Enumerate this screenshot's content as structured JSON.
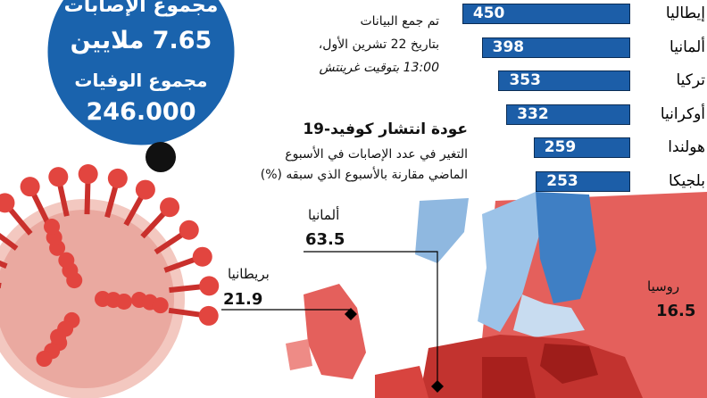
{
  "circle": {
    "cases_label": "مجموع الإصابات",
    "cases": "7.65 ملايين",
    "deaths_label": "مجموع الوفيات",
    "deaths": "246.000"
  },
  "note": [
    "تم جمع البيانات",
    "بتاريخ 22 تشرين الأول،",
    "13:00 بتوقيت غرينتش"
  ],
  "chart_data": {
    "type": "bar",
    "orientation": "horizontal",
    "categories": [
      "إيطاليا",
      "ألمانيا",
      "تركيا",
      "أوكرانيا",
      "هولندا",
      "بلجيكا"
    ],
    "values": [
      450,
      398,
      353,
      332,
      259,
      253
    ],
    "color": "#1c5ea8"
  },
  "map": {
    "title": "عودة انتشار كوفيد-19",
    "subtitle": [
      "التغير في عدد الإصابات في الأسبوع",
      "الماضي مقارنة بالأسبوع الذي سبقه (%)"
    ],
    "labels": [
      {
        "name": "ألمانيا",
        "value": 63.5
      },
      {
        "name": "بريطانيا",
        "value": 21.9
      },
      {
        "name": "روسيا",
        "value": 16.5
      }
    ]
  }
}
